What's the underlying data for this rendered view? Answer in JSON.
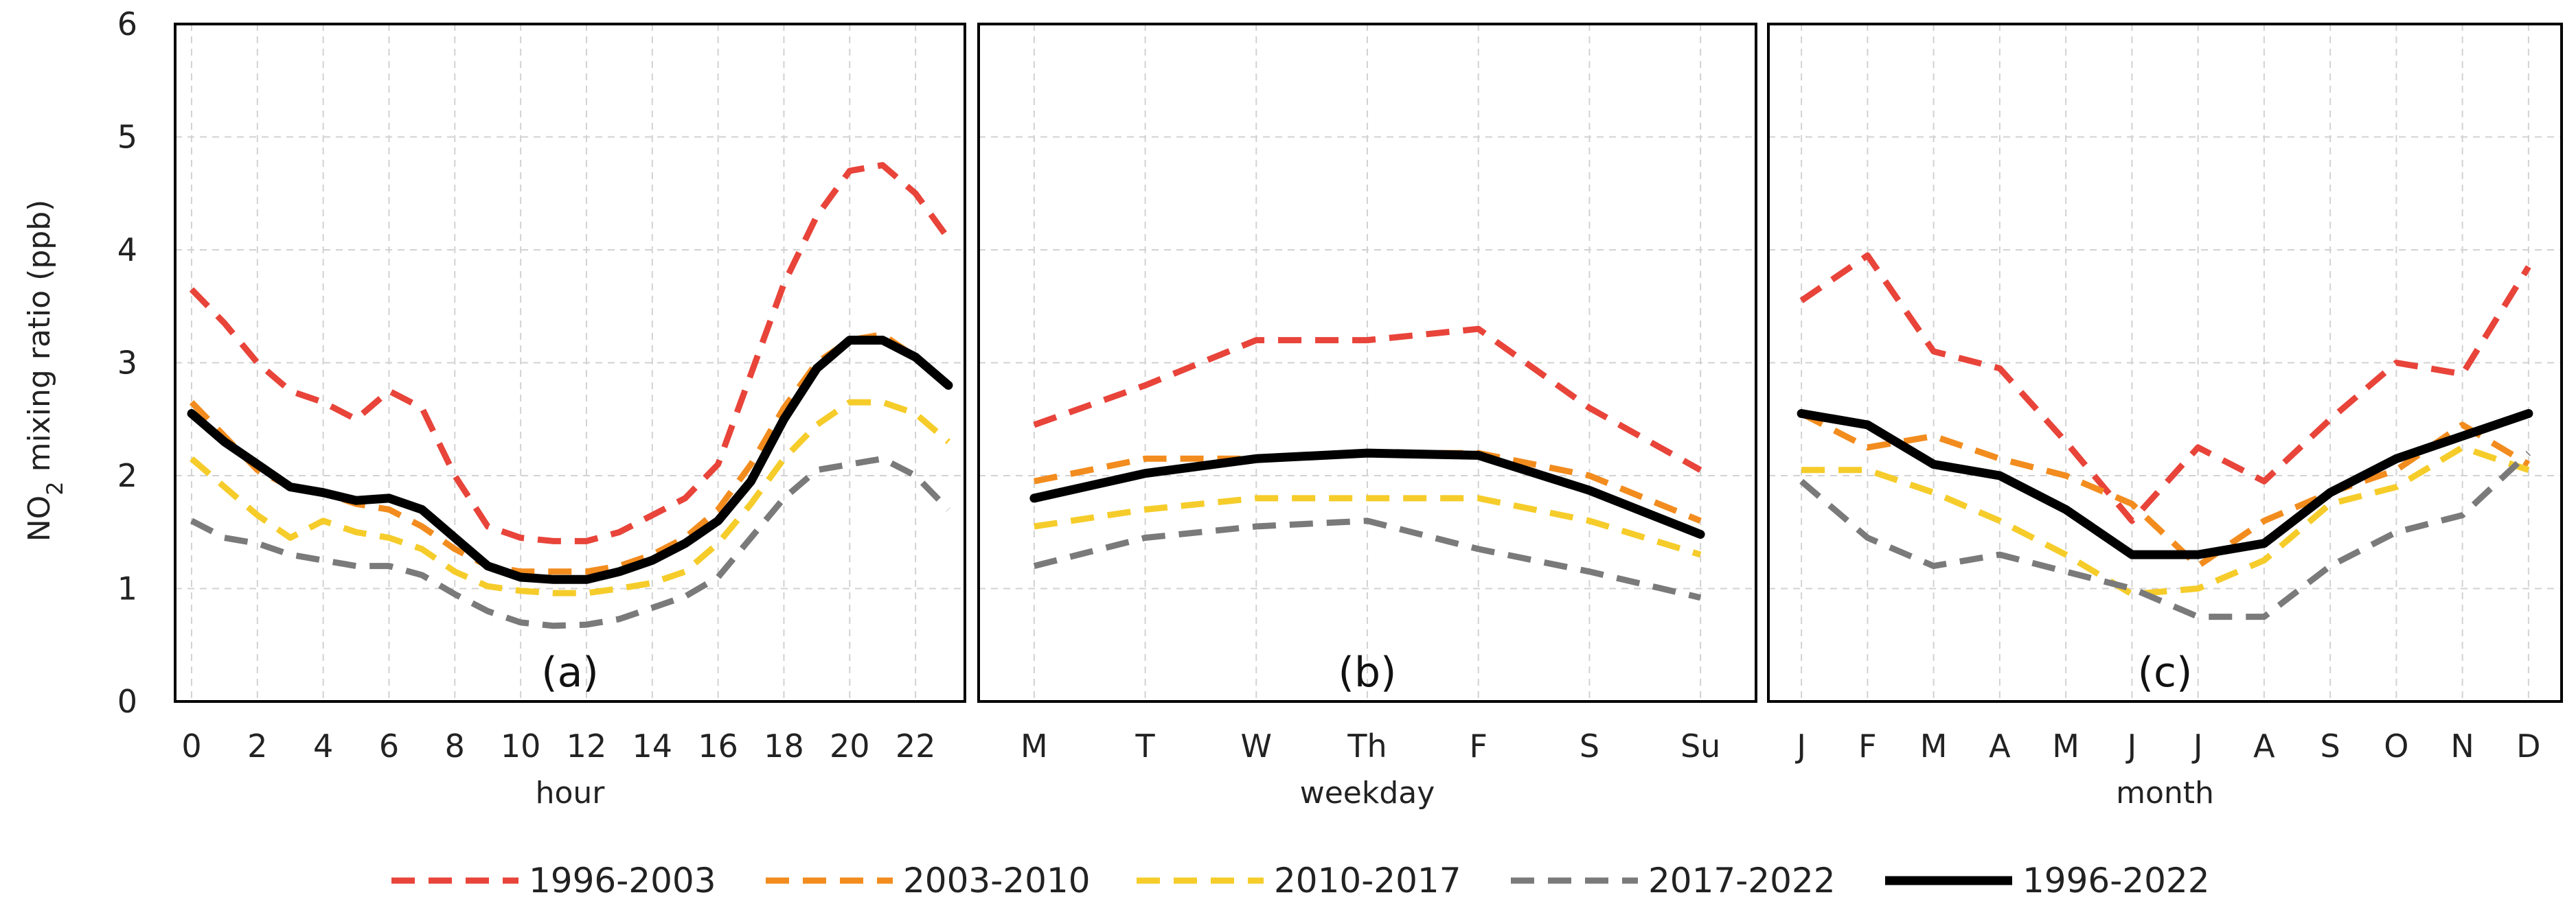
{
  "chart_data": {
    "type": "line",
    "ylabel_main": "NO",
    "ylabel_sub": "2",
    "ylabel_rest": " mixing ratio (ppb)",
    "ylim": [
      0,
      6
    ],
    "yticks": [
      "0",
      "1",
      "2",
      "3",
      "4",
      "5",
      "6"
    ],
    "series_meta": [
      {
        "name": "1996-2003",
        "color": "#e8443a",
        "dashed": true
      },
      {
        "name": "2003-2010",
        "color": "#f28c1e",
        "dashed": true
      },
      {
        "name": "2010-2017",
        "color": "#f5cc2a",
        "dashed": true
      },
      {
        "name": "2017-2022",
        "color": "#7a7a7a",
        "dashed": true
      },
      {
        "name": "1996-2022",
        "color": "#000000",
        "dashed": false
      }
    ],
    "panels": [
      {
        "label": "(a)",
        "xlabel": "hour",
        "xlim": [
          -0.5,
          23.5
        ],
        "ticks": [
          0,
          2,
          4,
          6,
          8,
          10,
          12,
          14,
          16,
          18,
          20,
          22
        ],
        "tick_labels": [
          "0",
          "2",
          "4",
          "6",
          "8",
          "10",
          "12",
          "14",
          "16",
          "18",
          "20",
          "22"
        ],
        "x": [
          0,
          1,
          2,
          3,
          4,
          5,
          6,
          7,
          8,
          9,
          10,
          11,
          12,
          13,
          14,
          15,
          16,
          17,
          18,
          19,
          20,
          21,
          22,
          23
        ],
        "series": [
          {
            "name": "1996-2003",
            "values": [
              3.65,
              3.35,
              3.0,
              2.75,
              2.65,
              2.5,
              2.75,
              2.6,
              2.0,
              1.55,
              1.45,
              1.42,
              1.42,
              1.5,
              1.65,
              1.8,
              2.1,
              2.9,
              3.7,
              4.3,
              4.7,
              4.75,
              4.5,
              4.1
            ]
          },
          {
            "name": "2003-2010",
            "values": [
              2.65,
              2.35,
              2.05,
              1.9,
              1.85,
              1.75,
              1.7,
              1.55,
              1.35,
              1.2,
              1.15,
              1.15,
              1.15,
              1.2,
              1.3,
              1.45,
              1.7,
              2.1,
              2.6,
              3.0,
              3.2,
              3.25,
              3.05,
              2.8
            ]
          },
          {
            "name": "2010-2017",
            "values": [
              2.15,
              1.9,
              1.65,
              1.45,
              1.6,
              1.5,
              1.45,
              1.35,
              1.15,
              1.02,
              0.98,
              0.96,
              0.96,
              1.0,
              1.05,
              1.15,
              1.4,
              1.75,
              2.15,
              2.45,
              2.65,
              2.65,
              2.55,
              2.3
            ]
          },
          {
            "name": "2017-2022",
            "values": [
              1.6,
              1.45,
              1.4,
              1.3,
              1.25,
              1.2,
              1.2,
              1.12,
              0.95,
              0.8,
              0.7,
              0.67,
              0.68,
              0.73,
              0.83,
              0.93,
              1.1,
              1.45,
              1.8,
              2.05,
              2.1,
              2.15,
              2.0,
              1.7
            ]
          },
          {
            "name": "1996-2022",
            "values": [
              2.55,
              2.3,
              2.1,
              1.9,
              1.85,
              1.78,
              1.8,
              1.7,
              1.45,
              1.2,
              1.1,
              1.08,
              1.08,
              1.15,
              1.25,
              1.4,
              1.6,
              1.95,
              2.5,
              2.95,
              3.2,
              3.2,
              3.05,
              2.8
            ]
          }
        ]
      },
      {
        "label": "(b)",
        "xlabel": "weekday",
        "xlim": [
          -0.5,
          6.5
        ],
        "ticks": [
          0,
          1,
          2,
          3,
          4,
          5,
          6
        ],
        "tick_labels": [
          "M",
          "T",
          "W",
          "Th",
          "F",
          "S",
          "Su"
        ],
        "x": [
          0,
          1,
          2,
          3,
          4,
          5,
          6
        ],
        "series": [
          {
            "name": "1996-2003",
            "values": [
              2.45,
              2.8,
              3.2,
              3.2,
              3.3,
              2.6,
              2.05
            ]
          },
          {
            "name": "2003-2010",
            "values": [
              1.95,
              2.15,
              2.15,
              2.2,
              2.2,
              2.0,
              1.6
            ]
          },
          {
            "name": "2010-2017",
            "values": [
              1.55,
              1.7,
              1.8,
              1.8,
              1.8,
              1.6,
              1.3
            ]
          },
          {
            "name": "2017-2022",
            "values": [
              1.2,
              1.45,
              1.55,
              1.6,
              1.35,
              1.15,
              0.92
            ]
          },
          {
            "name": "1996-2022",
            "values": [
              1.8,
              2.02,
              2.15,
              2.2,
              2.18,
              1.87,
              1.48
            ]
          }
        ]
      },
      {
        "label": "(c)",
        "xlabel": "month",
        "xlim": [
          -0.5,
          11.5
        ],
        "ticks": [
          0,
          1,
          2,
          3,
          4,
          5,
          6,
          7,
          8,
          9,
          10,
          11
        ],
        "tick_labels": [
          "J",
          "F",
          "M",
          "A",
          "M",
          "J",
          "J",
          "A",
          "S",
          "O",
          "N",
          "D"
        ],
        "x": [
          0,
          1,
          2,
          3,
          4,
          5,
          6,
          7,
          8,
          9,
          10,
          11
        ],
        "series": [
          {
            "name": "1996-2003",
            "values": [
              3.55,
              3.95,
              3.1,
              2.95,
              2.3,
              1.6,
              2.25,
              1.95,
              2.5,
              3.0,
              2.9,
              3.85
            ]
          },
          {
            "name": "2003-2010",
            "values": [
              2.55,
              2.25,
              2.35,
              2.15,
              2.0,
              1.75,
              1.2,
              1.6,
              1.85,
              2.05,
              2.45,
              2.1
            ]
          },
          {
            "name": "2010-2017",
            "values": [
              2.05,
              2.05,
              1.85,
              1.6,
              1.3,
              0.95,
              1.0,
              1.25,
              1.75,
              1.9,
              2.25,
              2.05
            ]
          },
          {
            "name": "2017-2022",
            "values": [
              1.95,
              1.45,
              1.2,
              1.3,
              1.15,
              1.0,
              0.75,
              0.75,
              1.2,
              1.5,
              1.65,
              2.2
            ]
          },
          {
            "name": "1996-2022",
            "values": [
              2.55,
              2.45,
              2.1,
              2.0,
              1.7,
              1.3,
              1.3,
              1.4,
              1.85,
              2.15,
              2.35,
              2.55
            ]
          }
        ]
      }
    ]
  }
}
